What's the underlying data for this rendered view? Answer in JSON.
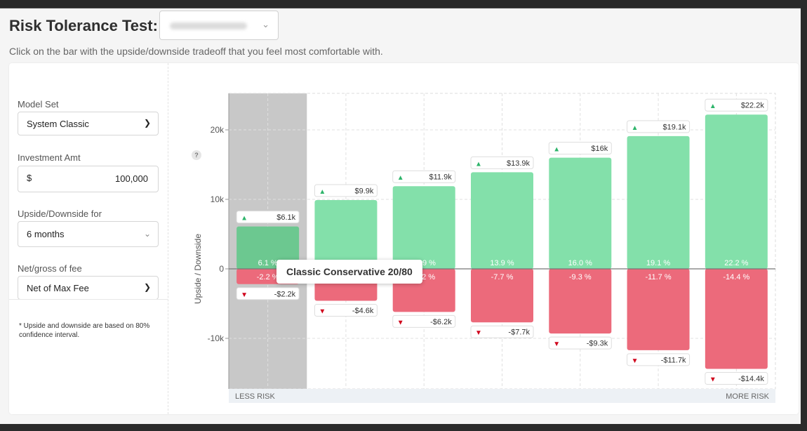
{
  "header": {
    "title": "Risk Tolerance Test:",
    "client_select": {
      "chevron_icon": "chevron-down-icon"
    },
    "subtitle": "Click on the bar with the upside/downside tradeoff that you feel most comfortable with."
  },
  "sidebar": {
    "model_set": {
      "label": "Model Set",
      "value": "System Classic"
    },
    "investment": {
      "label": "Investment Amt",
      "currency": "$",
      "value": "100,000"
    },
    "upside_for": {
      "label": "Upside/Downside for",
      "value": "6 months"
    },
    "fee": {
      "label": "Net/gross of fee",
      "value": "Net of Max Fee"
    },
    "note": "* Upside and downside are based on 80% confidence interval."
  },
  "help_icon": "?",
  "tooltip": "Classic Conservative 20/80",
  "colors": {
    "upside": "#83e0aa",
    "upside_selected": "#6cc890",
    "downside": "#ec6a7b",
    "selected_band": "#c8c8c8",
    "up_arrow": "#2db46a",
    "down_arrow": "#d0021b"
  },
  "chart_data": {
    "type": "bar",
    "ylabel": "Upside / Downside",
    "ylim": [
      -17500,
      25000
    ],
    "y_ticks": [
      {
        "value": 20000,
        "label": "20k"
      },
      {
        "value": 10000,
        "label": "10k"
      },
      {
        "value": 0,
        "label": "0"
      },
      {
        "value": -10000,
        "label": "-10k"
      }
    ],
    "selected_index": 0,
    "x_left_label": "LESS RISK",
    "x_right_label": "MORE RISK",
    "series": [
      {
        "name": "Upside",
        "values": [
          6100,
          9900,
          11900,
          13900,
          16000,
          19100,
          22200
        ],
        "labels": [
          "$6.1k",
          "$9.9k",
          "$11.9k",
          "$13.9k",
          "$16k",
          "$19.1k",
          "$22.2k"
        ],
        "pct_labels": [
          "6.1 %",
          "9.9 %",
          "11.9 %",
          "13.9 %",
          "16.0 %",
          "19.1 %",
          "22.2 %"
        ]
      },
      {
        "name": "Downside",
        "values": [
          -2200,
          -4600,
          -6200,
          -7700,
          -9300,
          -11700,
          -14400
        ],
        "labels": [
          "-$2.2k",
          "-$4.6k",
          "-$6.2k",
          "-$7.7k",
          "-$9.3k",
          "-$11.7k",
          "-$14.4k"
        ],
        "pct_labels": [
          "-2.2 %",
          "-4.6 %",
          "-6.2 %",
          "-7.7 %",
          "-9.3 %",
          "-11.7 %",
          "-14.4 %"
        ]
      }
    ]
  }
}
